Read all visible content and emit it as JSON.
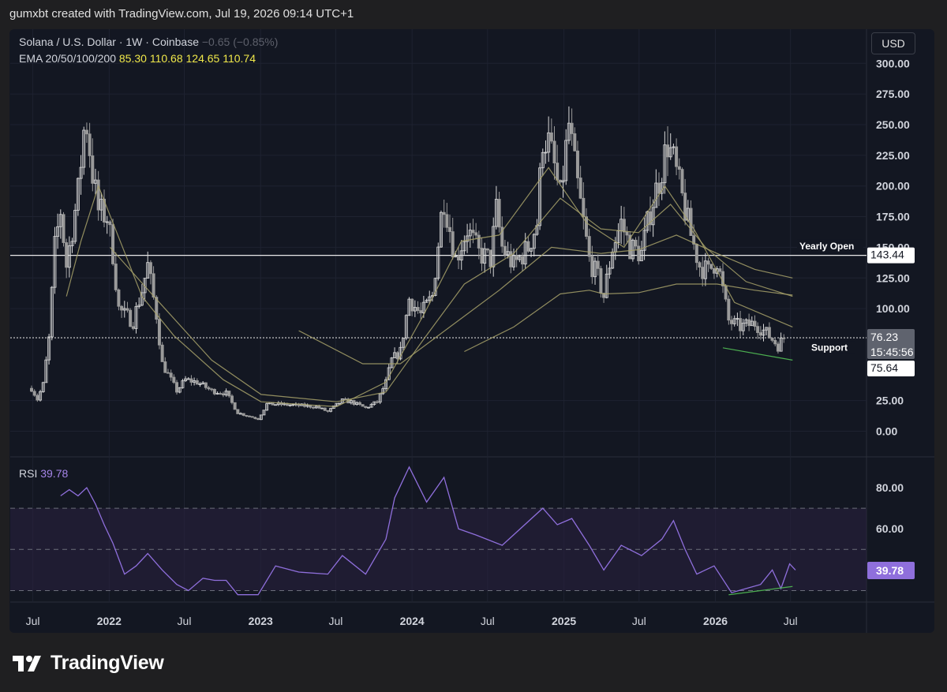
{
  "credit": "gumxbt created with TradingView.com, Jul 19, 2026 09:14 UTC+1",
  "header": {
    "symbol": "Solana / U.S. Dollar · 1W · Coinbase",
    "change": "−0.65 (−0.85%)",
    "ema_label": "EMA 20/50/100/200",
    "ema_values": [
      "85.30",
      "110.68",
      "124.65",
      "110.74"
    ]
  },
  "currency_button": "USD",
  "rsi": {
    "label": "RSI",
    "value": "39.78"
  },
  "logo_text": "TradingView",
  "colors": {
    "background": "#131722",
    "candle": "#c9c9c9",
    "ema": "#a8a26a",
    "rsi": "#8f6fdc",
    "rsi_band": "#2a2140",
    "support_line": "#d6d6d6",
    "divergence": "#4caf50",
    "text": "#d1d4dc",
    "header_values": "#f0e84a"
  },
  "chart_data": [
    {
      "type": "candlestick",
      "title": "Solana / U.S. Dollar · 1W · Coinbase",
      "ylim": [
        -25,
        310
      ],
      "y_ticks": [
        "0.00",
        "25.00",
        "100.00",
        "125.00",
        "150.00",
        "175.00",
        "200.00",
        "225.00",
        "250.00",
        "275.00",
        "300.00"
      ],
      "x_ticks": [
        "Jul",
        "2022",
        "Jul",
        "2023",
        "Jul",
        "2024",
        "Jul",
        "2025",
        "Jul",
        "2026",
        "Jul"
      ],
      "close_path": [
        [
          "2021-06-28",
          35
        ],
        [
          "2021-07-12",
          26
        ],
        [
          "2021-07-26",
          38
        ],
        [
          "2021-08-09",
          75
        ],
        [
          "2021-08-23",
          150
        ],
        [
          "2021-09-06",
          180
        ],
        [
          "2021-09-20",
          135
        ],
        [
          "2021-10-04",
          165
        ],
        [
          "2021-10-18",
          195
        ],
        [
          "2021-11-01",
          245
        ],
        [
          "2021-11-08",
          250
        ],
        [
          "2021-11-22",
          210
        ],
        [
          "2021-12-06",
          180
        ],
        [
          "2021-12-27",
          175
        ],
        [
          "2022-01-10",
          145
        ],
        [
          "2022-01-24",
          100
        ],
        [
          "2022-02-07",
          95
        ],
        [
          "2022-02-28",
          90
        ],
        [
          "2022-03-21",
          115
        ],
        [
          "2022-04-04",
          135
        ],
        [
          "2022-04-25",
          95
        ],
        [
          "2022-05-09",
          55
        ],
        [
          "2022-06-13",
          33
        ],
        [
          "2022-07-04",
          42
        ],
        [
          "2022-08-01",
          40
        ],
        [
          "2022-09-05",
          33
        ],
        [
          "2022-10-10",
          31
        ],
        [
          "2022-11-07",
          15
        ],
        [
          "2022-12-26",
          10
        ],
        [
          "2023-01-16",
          22
        ],
        [
          "2023-02-13",
          22
        ],
        [
          "2023-04-03",
          21
        ],
        [
          "2023-05-15",
          20
        ],
        [
          "2023-06-12",
          16
        ],
        [
          "2023-07-17",
          25
        ],
        [
          "2023-08-07",
          24
        ],
        [
          "2023-09-11",
          19
        ],
        [
          "2023-10-09",
          24
        ],
        [
          "2023-10-30",
          40
        ],
        [
          "2023-11-13",
          58
        ],
        [
          "2023-12-04",
          65
        ],
        [
          "2023-12-25",
          108
        ],
        [
          "2024-01-22",
          95
        ],
        [
          "2024-02-19",
          110
        ],
        [
          "2024-03-11",
          175
        ],
        [
          "2024-03-18",
          190
        ],
        [
          "2024-04-15",
          140
        ],
        [
          "2024-05-13",
          165
        ],
        [
          "2024-06-10",
          145
        ],
        [
          "2024-07-08",
          140
        ],
        [
          "2024-07-22",
          180
        ],
        [
          "2024-08-05",
          150
        ],
        [
          "2024-09-02",
          135
        ],
        [
          "2024-10-07",
          150
        ],
        [
          "2024-10-28",
          170
        ],
        [
          "2024-11-11",
          240
        ],
        [
          "2024-11-25",
          235
        ],
        [
          "2024-12-09",
          215
        ],
        [
          "2024-12-23",
          190
        ],
        [
          "2025-01-13",
          250
        ],
        [
          "2025-01-27",
          215
        ],
        [
          "2025-02-17",
          170
        ],
        [
          "2025-03-03",
          140
        ],
        [
          "2025-03-24",
          125
        ],
        [
          "2025-04-07",
          110
        ],
        [
          "2025-04-28",
          150
        ],
        [
          "2025-05-19",
          170
        ],
        [
          "2025-06-09",
          150
        ],
        [
          "2025-07-07",
          145
        ],
        [
          "2025-07-28",
          180
        ],
        [
          "2025-08-18",
          205
        ],
        [
          "2025-09-08",
          235
        ],
        [
          "2025-09-22",
          220
        ],
        [
          "2025-10-13",
          190
        ],
        [
          "2025-11-03",
          160
        ],
        [
          "2025-11-24",
          135
        ],
        [
          "2025-12-15",
          130
        ],
        [
          "2026-01-05",
          140
        ],
        [
          "2026-02-02",
          90
        ],
        [
          "2026-03-02",
          85
        ],
        [
          "2026-04-06",
          88
        ],
        [
          "2026-05-04",
          80
        ],
        [
          "2026-06-01",
          70
        ],
        [
          "2026-06-15",
          76
        ]
      ],
      "ema_series": [
        {
          "name": "EMA",
          "values": [
            [
              "2021-09-20",
              110
            ],
            [
              "2021-10-25",
              155
            ],
            [
              "2021-12-06",
              200
            ],
            [
              "2022-01-10",
              170
            ],
            [
              "2022-03-21",
              110
            ],
            [
              "2022-06-06",
              78
            ],
            [
              "2022-10-03",
              42
            ],
            [
              "2023-01-02",
              24
            ],
            [
              "2023-07-03",
              20
            ],
            [
              "2023-10-30",
              40
            ],
            [
              "2024-01-29",
              95
            ],
            [
              "2024-04-29",
              155
            ],
            [
              "2024-07-29",
              160
            ],
            [
              "2024-11-25",
              215
            ],
            [
              "2025-02-24",
              170
            ],
            [
              "2025-05-26",
              150
            ],
            [
              "2025-09-01",
              200
            ],
            [
              "2025-11-10",
              165
            ],
            [
              "2026-02-16",
              105
            ],
            [
              "2026-07-06",
              85
            ]
          ]
        },
        {
          "name": "EMA",
          "values": [
            [
              "2022-01-03",
              150
            ],
            [
              "2022-05-02",
              105
            ],
            [
              "2022-09-05",
              58
            ],
            [
              "2023-01-02",
              30
            ],
            [
              "2023-07-03",
              24
            ],
            [
              "2023-10-30",
              32
            ],
            [
              "2024-01-29",
              75
            ],
            [
              "2024-05-06",
              120
            ],
            [
              "2024-09-02",
              145
            ],
            [
              "2024-12-23",
              190
            ],
            [
              "2025-03-31",
              165
            ],
            [
              "2025-06-30",
              162
            ],
            [
              "2025-09-15",
              185
            ],
            [
              "2025-12-08",
              150
            ],
            [
              "2026-03-16",
              122
            ],
            [
              "2026-07-06",
              110
            ]
          ]
        },
        {
          "name": "EMA",
          "values": [
            [
              "2023-04-03",
              82
            ],
            [
              "2023-09-04",
              55
            ],
            [
              "2023-12-04",
              55
            ],
            [
              "2024-04-01",
              85
            ],
            [
              "2024-07-29",
              115
            ],
            [
              "2024-12-02",
              150
            ],
            [
              "2025-03-31",
              145
            ],
            [
              "2025-06-30",
              148
            ],
            [
              "2025-09-29",
              160
            ],
            [
              "2026-01-05",
              145
            ],
            [
              "2026-04-06",
              132
            ],
            [
              "2026-07-06",
              125
            ]
          ]
        },
        {
          "name": "EMA",
          "values": [
            [
              "2024-05-06",
              65
            ],
            [
              "2024-09-02",
              85
            ],
            [
              "2024-12-23",
              112
            ],
            [
              "2025-03-03",
              115
            ],
            [
              "2025-04-07",
              112
            ],
            [
              "2025-06-30",
              113
            ],
            [
              "2025-09-29",
              120
            ],
            [
              "2026-01-05",
              120
            ],
            [
              "2026-04-06",
              115
            ],
            [
              "2026-07-06",
              111
            ]
          ]
        }
      ],
      "horizontal_lines": [
        {
          "label": "Yearly Open",
          "value": 143.44
        },
        {
          "label": "Support",
          "value": 76.23
        }
      ],
      "price_labels": [
        "143.44",
        "76.23",
        "15:45:56",
        "75.64"
      ],
      "annotations": [
        "Yearly Open",
        "Support"
      ],
      "divergence_line": [
        [
          "2026-01-19",
          68
        ],
        [
          "2026-07-06",
          58
        ]
      ]
    },
    {
      "type": "line",
      "title": "RSI",
      "ylim": [
        25,
        96
      ],
      "y_ticks": [
        "80.00",
        "60.00",
        "39.78"
      ],
      "bands": [
        30,
        50,
        70
      ],
      "values": [
        [
          "2021-09-06",
          76
        ],
        [
          "2021-09-27",
          79
        ],
        [
          "2021-10-18",
          76
        ],
        [
          "2021-11-08",
          80
        ],
        [
          "2021-11-29",
          72
        ],
        [
          "2021-12-20",
          62
        ],
        [
          "2022-01-10",
          53
        ],
        [
          "2022-02-07",
          38
        ],
        [
          "2022-03-07",
          42
        ],
        [
          "2022-04-04",
          48
        ],
        [
          "2022-05-09",
          40
        ],
        [
          "2022-06-13",
          33
        ],
        [
          "2022-07-11",
          30
        ],
        [
          "2022-08-15",
          36
        ],
        [
          "2022-09-12",
          35
        ],
        [
          "2022-10-10",
          35
        ],
        [
          "2022-11-07",
          28
        ],
        [
          "2022-12-26",
          28
        ],
        [
          "2023-02-06",
          42
        ],
        [
          "2023-04-03",
          39
        ],
        [
          "2023-06-12",
          38
        ],
        [
          "2023-07-17",
          47
        ],
        [
          "2023-09-11",
          38
        ],
        [
          "2023-10-30",
          55
        ],
        [
          "2023-11-20",
          75
        ],
        [
          "2023-12-25",
          90
        ],
        [
          "2024-02-05",
          73
        ],
        [
          "2024-03-18",
          85
        ],
        [
          "2024-04-22",
          60
        ],
        [
          "2024-06-03",
          57
        ],
        [
          "2024-08-05",
          52
        ],
        [
          "2024-11-11",
          70
        ],
        [
          "2024-12-16",
          62
        ],
        [
          "2025-01-20",
          65
        ],
        [
          "2025-03-03",
          52
        ],
        [
          "2025-04-07",
          40
        ],
        [
          "2025-05-19",
          52
        ],
        [
          "2025-07-07",
          47
        ],
        [
          "2025-08-25",
          55
        ],
        [
          "2025-09-22",
          64
        ],
        [
          "2025-10-20",
          50
        ],
        [
          "2025-11-17",
          38
        ],
        [
          "2025-12-29",
          42
        ],
        [
          "2026-02-09",
          29
        ],
        [
          "2026-03-16",
          31
        ],
        [
          "2026-04-20",
          33
        ],
        [
          "2026-05-18",
          40
        ],
        [
          "2026-06-08",
          31
        ],
        [
          "2026-06-29",
          43
        ],
        [
          "2026-07-13",
          40
        ]
      ],
      "divergence_line": [
        [
          "2026-02-02",
          28
        ],
        [
          "2026-07-06",
          32
        ]
      ]
    }
  ]
}
